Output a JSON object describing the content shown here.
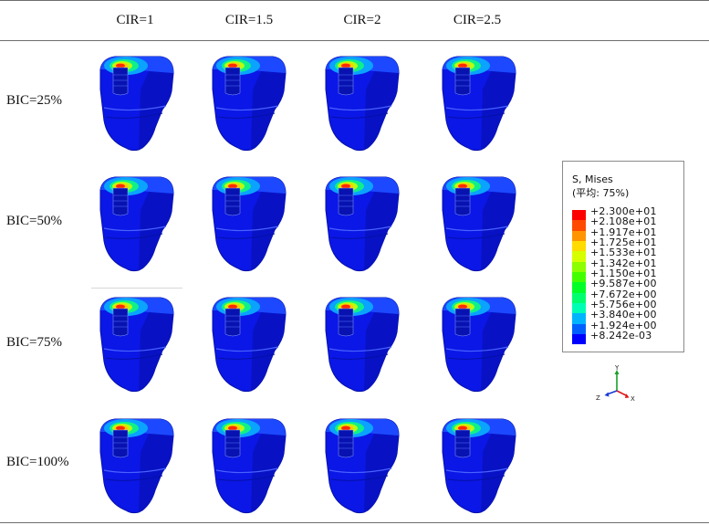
{
  "table": {
    "columns": [
      "CIR=1",
      "CIR=1.5",
      "CIR=2",
      "CIR=2.5"
    ],
    "rows": [
      "BIC=25%",
      "BIC=50%",
      "BIC=75%",
      "BIC=100%"
    ]
  },
  "legend": {
    "title_line1": "S, Mises",
    "title_line2": "(平均: 75%)",
    "entries": [
      {
        "label": "+2.300e+01",
        "color": "#ff0000"
      },
      {
        "label": "+2.108e+01",
        "color": "#ff4a00"
      },
      {
        "label": "+1.917e+01",
        "color": "#ff9400"
      },
      {
        "label": "+1.725e+01",
        "color": "#ffdb00"
      },
      {
        "label": "+1.533e+01",
        "color": "#d6ff00"
      },
      {
        "label": "+1.342e+01",
        "color": "#8cff00"
      },
      {
        "label": "+1.150e+01",
        "color": "#42ff00"
      },
      {
        "label": "+9.587e+00",
        "color": "#00ff27"
      },
      {
        "label": "+7.672e+00",
        "color": "#00ff6f"
      },
      {
        "label": "+5.756e+00",
        "color": "#00ffb4"
      },
      {
        "label": "+3.840e+00",
        "color": "#00b4ff"
      },
      {
        "label": "+1.924e+00",
        "color": "#0060ff"
      },
      {
        "label": "+8.242e-03",
        "color": "#0000ff"
      }
    ]
  },
  "axes": {
    "y": "Y",
    "z": "Z",
    "x": "X"
  }
}
